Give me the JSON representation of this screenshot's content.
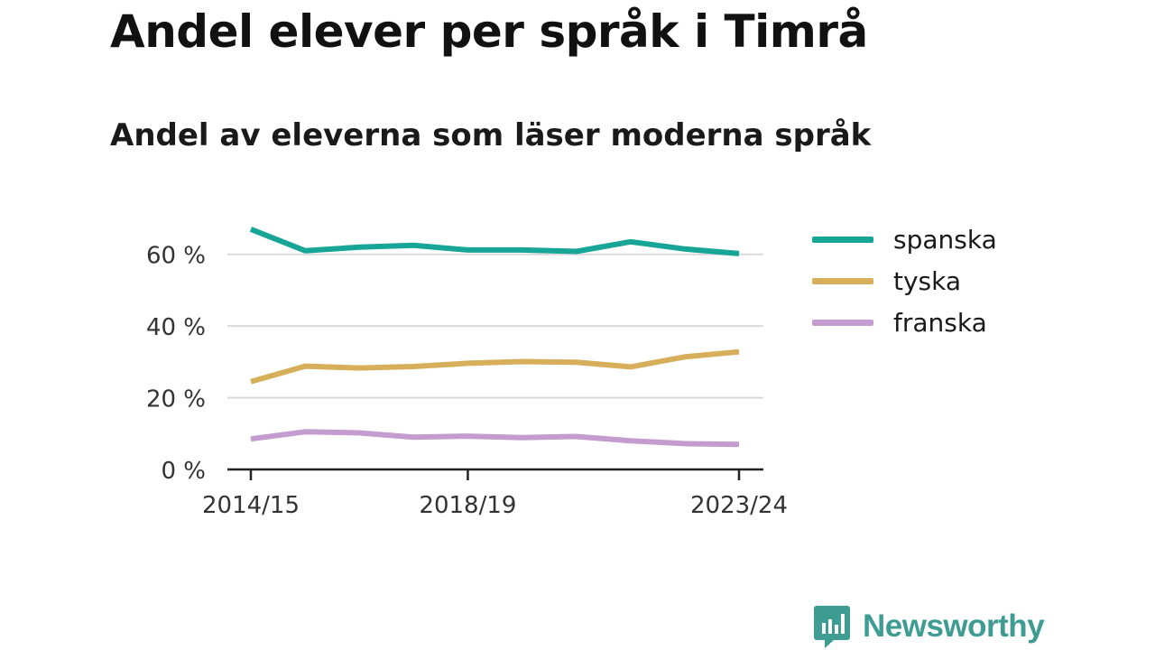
{
  "header": {
    "title": "Andel elever per språk i Timrå",
    "subtitle": "Andel av eleverna som läser moderna språk"
  },
  "chart_data": {
    "type": "line",
    "x": [
      "2014/15",
      "2015/16",
      "2016/17",
      "2017/18",
      "2018/19",
      "2019/20",
      "2020/21",
      "2021/22",
      "2022/23",
      "2023/24"
    ],
    "x_tick_labels": [
      "2014/15",
      "2018/19",
      "2023/24"
    ],
    "y_ticks": [
      0,
      20,
      40,
      60
    ],
    "y_tick_suffix": " %",
    "ylim": [
      0,
      70
    ],
    "grid": true,
    "legend_position": "right",
    "series": [
      {
        "name": "spanska",
        "color": "#16a596",
        "values": [
          67,
          61,
          62,
          62.5,
          61.2,
          61.2,
          60.8,
          63.5,
          61.5,
          60.2
        ]
      },
      {
        "name": "tyska",
        "color": "#d7ae5a",
        "values": [
          24.5,
          28.8,
          28.3,
          28.7,
          29.6,
          30.1,
          29.9,
          28.6,
          31.4,
          32.8
        ]
      },
      {
        "name": "franska",
        "color": "#c49cd0",
        "values": [
          8.5,
          10.5,
          10.2,
          9.0,
          9.3,
          8.9,
          9.2,
          8.0,
          7.2,
          7.0
        ]
      }
    ]
  },
  "brand": {
    "name": "Newsworthy",
    "icon": "newsworthy-logo-icon",
    "color": "#3f9c93"
  }
}
